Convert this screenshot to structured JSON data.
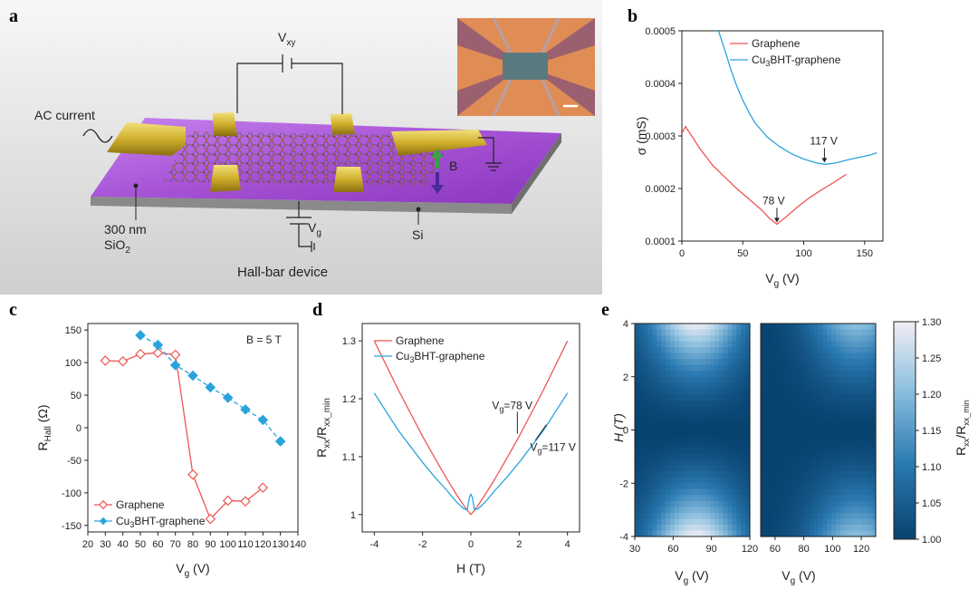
{
  "panel_labels": {
    "a": "a",
    "b": "b",
    "c": "c",
    "d": "d",
    "e": "e"
  },
  "panel_a": {
    "ac_current": "AC current",
    "vxy": "V",
    "vxy_sub": "xy",
    "vg": "V",
    "vg_sub": "g",
    "b_field": "B",
    "sio2_line1": "300 nm",
    "sio2_line2": "SiO",
    "sio2_sub": "2",
    "si": "Si",
    "device": "Hall-bar device"
  },
  "colors": {
    "graphene": "#ee5555",
    "cu3bht": "#2aa3dd",
    "substrate": "#9a48c8",
    "gold": "#c9ad2d"
  },
  "chart_data": [
    {
      "panel": "b",
      "type": "line",
      "xlabel": "V",
      "xlabel_sub": "g",
      "xlabel_unit": " (V)",
      "ylabel": "σ (mS)",
      "xlim": [
        0,
        165
      ],
      "ylim": [
        0.0001,
        0.0005
      ],
      "xticks": [
        "0",
        "50",
        "100",
        "150"
      ],
      "xtick_values": [
        0,
        50,
        100,
        150
      ],
      "yticks": [
        "0.0001",
        "0.0002",
        "0.0003",
        "0.0004",
        "0.0005"
      ],
      "ytick_values": [
        0.0001,
        0.0002,
        0.0003,
        0.0004,
        0.0005
      ],
      "legend": [
        {
          "name": "Graphene",
          "prefix": "Graphene",
          "sub": "",
          "suffix": ""
        },
        {
          "name": "Cu3BHT-graphene",
          "prefix": "Cu",
          "sub": "3",
          "suffix": "BHT-graphene"
        }
      ],
      "series": [
        {
          "name": "Graphene",
          "x": [
            0,
            3,
            8,
            15,
            25,
            35,
            45,
            55,
            65,
            72,
            78,
            85,
            95,
            105,
            115,
            125,
            135
          ],
          "y": [
            0.000305,
            0.000318,
            0.0003,
            0.000275,
            0.000245,
            0.000222,
            0.0002,
            0.00018,
            0.00016,
            0.000143,
            0.000132,
            0.000145,
            0.000165,
            0.000183,
            0.000198,
            0.000212,
            0.000227
          ]
        },
        {
          "name": "Cu3BHT-graphene",
          "x": [
            30,
            35,
            40,
            45,
            50,
            55,
            60,
            70,
            80,
            90,
            100,
            110,
            117,
            125,
            135,
            145,
            155,
            160
          ],
          "y": [
            0.0005,
            0.000465,
            0.000428,
            0.000395,
            0.000368,
            0.000345,
            0.000325,
            0.000298,
            0.00028,
            0.000266,
            0.000256,
            0.000249,
            0.000246,
            0.000248,
            0.000254,
            0.000259,
            0.000264,
            0.000268
          ]
        }
      ],
      "annotations": [
        {
          "text": "78 V",
          "x": 78,
          "y": 0.000132
        },
        {
          "text": "117 V",
          "x": 117,
          "y": 0.000246
        }
      ]
    },
    {
      "panel": "c",
      "type": "line",
      "xlabel": "V",
      "xlabel_sub": "g",
      "xlabel_unit": " (V)",
      "ylabel": "R",
      "ylabel_sub": "Hall",
      "ylabel_unit": " (Ω)",
      "xlim": [
        20,
        140
      ],
      "ylim": [
        -160,
        160
      ],
      "xticks": [
        "20",
        "30",
        "40",
        "50",
        "60",
        "70",
        "80",
        "90",
        "100",
        "110",
        "120",
        "130",
        "140"
      ],
      "xtick_values": [
        20,
        30,
        40,
        50,
        60,
        70,
        80,
        90,
        100,
        110,
        120,
        130,
        140
      ],
      "yticks": [
        "150",
        "100",
        "50",
        "0",
        "-50",
        "-100",
        "-150"
      ],
      "ytick_values": [
        150,
        100,
        50,
        0,
        -50,
        -100,
        -150
      ],
      "note": "B = 5 T",
      "legend": [
        {
          "name": "Graphene",
          "prefix": "Graphene",
          "sub": "",
          "suffix": ""
        },
        {
          "name": "Cu3BHT-graphene",
          "prefix": "Cu",
          "sub": "3",
          "suffix": "BHT-graphene"
        }
      ],
      "series": [
        {
          "name": "Graphene",
          "marker": "open-diamond",
          "x": [
            30,
            40,
            50,
            60,
            70,
            80,
            90,
            100,
            110,
            120
          ],
          "y": [
            103,
            102,
            113,
            115,
            112,
            -72,
            -140,
            -112,
            -113,
            -92
          ]
        },
        {
          "name": "Cu3BHT-graphene",
          "marker": "filled-diamond",
          "x": [
            50,
            60,
            70,
            80,
            90,
            100,
            110,
            120,
            130
          ],
          "y": [
            142,
            127,
            96,
            80,
            62,
            46,
            28,
            12,
            -21
          ]
        }
      ]
    },
    {
      "panel": "d",
      "type": "line",
      "xlabel": "H (T)",
      "ylabel": "R",
      "ylabel_sub": "xx",
      "ylabel_mid": "/R",
      "ylabel_sub2": "xx_min",
      "xlim": [
        -4.5,
        4.5
      ],
      "ylim": [
        0.97,
        1.33
      ],
      "xticks": [
        "-4",
        "-2",
        "0",
        "2",
        "4"
      ],
      "xtick_values": [
        -4,
        -2,
        0,
        2,
        4
      ],
      "yticks": [
        "1",
        "1.1",
        "1.2",
        "1.3"
      ],
      "ytick_values": [
        1,
        1.1,
        1.2,
        1.3
      ],
      "legend": [
        {
          "name": "Graphene",
          "prefix": "Graphene",
          "sub": "",
          "suffix": ""
        },
        {
          "name": "Cu3BHT-graphene",
          "prefix": "Cu",
          "sub": "3",
          "suffix": "BHT-graphene"
        }
      ],
      "series": [
        {
          "name": "Graphene",
          "x": [
            -4,
            -3,
            -2,
            -1.5,
            -1,
            -0.6,
            -0.3,
            -0.1,
            0,
            0.1,
            0.3,
            0.6,
            1,
            1.5,
            2,
            3,
            4
          ],
          "y": [
            1.3,
            1.215,
            1.135,
            1.098,
            1.062,
            1.035,
            1.016,
            1.005,
            1.0,
            1.005,
            1.016,
            1.035,
            1.062,
            1.098,
            1.135,
            1.215,
            1.3
          ]
        },
        {
          "name": "Cu3BHT-graphene",
          "x": [
            -4,
            -3,
            -2,
            -1.5,
            -1,
            -0.6,
            -0.3,
            -0.15,
            -0.06,
            0,
            0.06,
            0.15,
            0.3,
            0.6,
            1,
            1.5,
            2,
            3,
            4
          ],
          "y": [
            1.21,
            1.145,
            1.09,
            1.065,
            1.042,
            1.022,
            1.01,
            1.008,
            1.03,
            1.035,
            1.03,
            1.008,
            1.01,
            1.022,
            1.042,
            1.065,
            1.09,
            1.145,
            1.21
          ]
        }
      ],
      "annotations": [
        {
          "prefix": "V",
          "sub": "g",
          "suffix": "=78 V",
          "x": 2.0,
          "y": 1.135
        },
        {
          "prefix": "V",
          "sub": "g",
          "suffix": "=117 V",
          "x": 3.2,
          "y": 1.16
        }
      ]
    },
    {
      "panel": "e",
      "type": "heatmap",
      "ylabel": "H (T)",
      "yticks": [
        "-4",
        "-2",
        "0",
        "2",
        "4"
      ],
      "ytick_values": [
        -4,
        -2,
        0,
        2,
        4
      ],
      "ylim": [
        -4,
        4
      ],
      "maps": [
        {
          "name": "Graphene",
          "xlabel": "V",
          "xlabel_sub": "g",
          "xlabel_unit": " (V)",
          "xlim": [
            30,
            120
          ],
          "xticks": [
            "30",
            "60",
            "90",
            "120"
          ],
          "xtick_values": [
            30,
            60,
            90,
            120
          ],
          "center_x": 78,
          "max_value": 1.3
        },
        {
          "name": "Cu3BHT-graphene",
          "xlabel": "V",
          "xlabel_sub": "g",
          "xlabel_unit": " (V)",
          "xlim": [
            50,
            130
          ],
          "xticks": [
            "60",
            "80",
            "100",
            "120"
          ],
          "xtick_values": [
            60,
            80,
            100,
            120
          ],
          "center_x": 117,
          "max_value": 1.21
        }
      ],
      "colorbar": {
        "label": "R",
        "label_sub": "xx",
        "label_mid": "/R",
        "label_sub2": "xx_min",
        "min": 1.0,
        "max": 1.3,
        "ticks": [
          "1.00",
          "1.05",
          "1.10",
          "1.15",
          "1.20",
          "1.25",
          "1.30"
        ],
        "tick_values": [
          1.0,
          1.05,
          1.1,
          1.15,
          1.2,
          1.25,
          1.3
        ]
      }
    }
  ]
}
